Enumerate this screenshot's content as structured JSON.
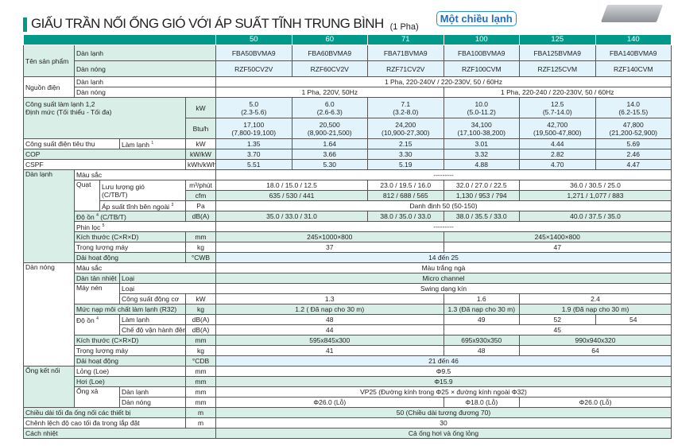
{
  "title": "GIẤU TRẦN NỐI ỐNG GIÓ VỚI ÁP SUẤT TĨNH TRUNG BÌNH",
  "phase": "(1 Pha)",
  "badge": "Một chiều lạnh",
  "colors": {
    "header": "#00998a",
    "label": "#d8eee6",
    "value": "#e2f3fb"
  },
  "models": [
    "50",
    "60",
    "71",
    "100",
    "125",
    "140"
  ],
  "r": {
    "tsp": "Tên sản phẩm",
    "dl": "Dàn lạnh",
    "dn": "Dàn nóng",
    "indoor": [
      "FBA50BVMA9",
      "FBA60BVMA9",
      "FBA71BVMA9",
      "FBA100BVMA9",
      "FBA125BVMA9",
      "FBA140BVMA9"
    ],
    "outdoor": [
      "RZF50CV2V",
      "RZF60CV2V",
      "RZF71CV2V",
      "RZF100CVM",
      "RZF125CVM",
      "RZF140CVM"
    ],
    "nguon": "Nguồn điện",
    "nguon_dl": "1 Pha, 220-240V / 220-230V, 50 / 60Hz",
    "nguon_dn": [
      "1 Pha, 220V, 50Hz",
      "1 Pha, 220-240 / 220-230V, 50 / 60Hz"
    ],
    "cs": "Công suất làm lạnh 1,2",
    "cs2": "Định mức (Tối thiểu - Tối đa)",
    "kw": "kW",
    "btu": "Btu/h",
    "cs_kw": [
      "5.0",
      "6.0",
      "7.1",
      "10.0",
      "12.5",
      "14.0"
    ],
    "cs_kw_r": [
      "(2.3-5.6)",
      "(2.6-6.3)",
      "(3.2-8.0)",
      "(5.0-11.2)",
      "(5.7-14.0)",
      "(6.2-15.5)"
    ],
    "cs_btu": [
      "17,100",
      "20,500",
      "24,200",
      "34,100",
      "42,700",
      "47,800"
    ],
    "cs_btu_r": [
      "(7,800-19,100)",
      "(8,900-21,500)",
      "(10,900-27,300)",
      "(17,100-38,200)",
      "(19,500-47,800)",
      "(21,200-52,900)"
    ],
    "pin": "Công suất điện tiêu thụ",
    "lamlanh": "Làm lạnh",
    "pin_v": [
      "1.35",
      "1.64",
      "2.15",
      "3.01",
      "4.44",
      "5.69"
    ],
    "cop": "COP",
    "cop_u": "kW/kW",
    "cop_v": [
      "3.70",
      "3.66",
      "3.30",
      "3.32",
      "2.82",
      "2.46"
    ],
    "cspf": "CSPF",
    "cspf_u": "kWh/kWh",
    "cspf_v": [
      "5.51",
      "5.30",
      "5.19",
      "4.88",
      "4.70",
      "4.47"
    ],
    "mausac": "Màu sắc",
    "dash": "---------",
    "quat": "Quạt",
    "luuluong": "Lưu lượng gió",
    "ctbt": "(C/TB/T)",
    "m3": "m³/phút",
    "cfm": "cfm",
    "m3_v": [
      "18.0 / 15.0 / 12.5",
      "23.0 / 19.5 / 16.0",
      "32.0 / 27.0 / 22.5",
      "36.0 / 30.5 / 25.0"
    ],
    "cfm_v": [
      "635 / 530 / 441",
      "812 / 688 / 565",
      "1,130 / 953 / 794",
      "1,271 / 1,077 / 883"
    ],
    "apsuat": "Áp suất tĩnh bên ngoài",
    "pa": "Pa",
    "apsuat_v": "Danh định 50 (50-150)",
    "doon_dl": "Độ ồn",
    "doon_ctbt": "(C/TB/T)",
    "dba": "dB(A)",
    "doon_dl_v": [
      "35.0 / 33.0 / 31.0",
      "38.0 / 35.0 / 33.0",
      "38.0 / 35.5 / 33.0",
      "40.0 / 37.5 / 35.0"
    ],
    "phinloc": "Phin lọc",
    "kichthuoc": "Kích thước (C×R×D)",
    "mm": "mm",
    "kt_dl": [
      "245×1000×800",
      "245×1400×800"
    ],
    "trongluong": "Trọng lượng máy",
    "kg": "kg",
    "tl_dl": [
      "37",
      "47"
    ],
    "daihd": "Dải hoạt động",
    "cwb": "°CWB",
    "daihd_dl": "14 đến 25",
    "mau_dn": "Màu trắng ngà",
    "dantannhiet": "Dàn tản nhiệt",
    "loai": "Loại",
    "tannhiet_v": "Micro channel",
    "maynen": "Máy nén",
    "maynen_v": "Swing dạng kín",
    "csdc": "Công suất động cơ",
    "csdc_v": [
      "1.3",
      "1.6",
      "2.4"
    ],
    "nap": "Mức nạp môi chất làm lạnh (R32)",
    "nap_v": [
      "1.2 ( Đã nạp cho 30 m)",
      "1.3 (Đã nạp cho 30 m)",
      "1.9 (Đã nạp cho 30 m)"
    ],
    "doon": "Độ ồn",
    "doon_ll_v": [
      "48",
      "49",
      "52",
      "54"
    ],
    "dem": "Chế độ vận hành đêm",
    "dem_v": [
      "44",
      "45"
    ],
    "kt_dn": [
      "595x845x300",
      "695x930x350",
      "990x940x320"
    ],
    "tl_dn": [
      "41",
      "48",
      "64"
    ],
    "cdb": "°CDB",
    "daihd_dn": "21 đến 46",
    "ongketnoi": "Ống kết nối",
    "long": "Lỏng (Loe)",
    "long_v": "Φ9.5",
    "hoi": "Hơi (Loe)",
    "hoi_v": "Φ15.9",
    "ongxa": "Ống xả",
    "ongxa_dl": "VP25 (Đường kính trong Φ25 × đường kính ngoài Φ32)",
    "ongxa_dn": [
      "Φ26.0 (Lỗ)",
      "Φ18.0 (Lỗ)",
      "Φ26.0 (Lỗ)"
    ],
    "chieudai": "Chiều dài tối đa ống nối các thiết bị",
    "m": "m",
    "chieudai_v": "50 (Chiều dài tương đương 70)",
    "chenhlech": "Chênh lệch độ cao tối đa trong lắp đặt",
    "chenhlech_v": "30",
    "cachnhiet": "Cách nhiệt",
    "cachnhiet_v": "Cả ống hơi và ống lỏng",
    "s1": "1",
    "s3": "3",
    "s4": "4",
    "s5": "5"
  }
}
